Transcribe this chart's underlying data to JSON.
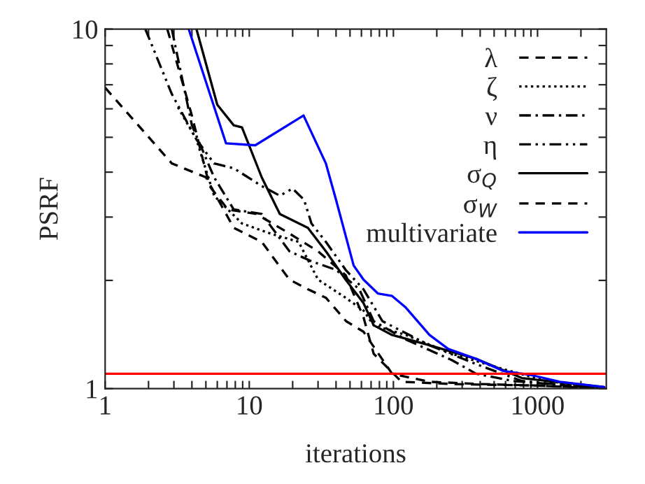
{
  "chart_data": {
    "type": "line",
    "xlabel": "iterations",
    "ylabel": "PSRF",
    "log": "xy",
    "grid": false,
    "legend": "top right",
    "xlim": [
      1,
      3000
    ],
    "ylim": [
      1,
      10
    ],
    "xticks": [
      1,
      {
        "value": 2,
        "label": null
      },
      {
        "value": 3,
        "label": null
      },
      {
        "value": 4,
        "label": null
      },
      {
        "value": 5,
        "label": null
      },
      {
        "value": 6,
        "label": null
      },
      {
        "value": 7,
        "label": null
      },
      {
        "value": 8,
        "label": null
      },
      {
        "value": 9,
        "label": null
      },
      10,
      {
        "value": 20,
        "label": null
      },
      {
        "value": 30,
        "label": null
      },
      {
        "value": 40,
        "label": null
      },
      {
        "value": 50,
        "label": null
      },
      {
        "value": 60,
        "label": null
      },
      {
        "value": 70,
        "label": null
      },
      {
        "value": 80,
        "label": null
      },
      {
        "value": 90,
        "label": null
      },
      100,
      {
        "value": 200,
        "label": null
      },
      {
        "value": 300,
        "label": null
      },
      {
        "value": 400,
        "label": null
      },
      {
        "value": 500,
        "label": null
      },
      {
        "value": 600,
        "label": null
      },
      {
        "value": 700,
        "label": null
      },
      {
        "value": 800,
        "label": null
      },
      {
        "value": 900,
        "label": null
      },
      1000,
      {
        "value": 2000,
        "label": null
      }
    ],
    "yticks": [
      1,
      {
        "value": 2,
        "label": null
      },
      {
        "value": 3,
        "label": null
      },
      {
        "value": 4,
        "label": null
      },
      {
        "value": 5,
        "label": null
      },
      {
        "value": 6,
        "label": null
      },
      {
        "value": 7,
        "label": null
      },
      {
        "value": 8,
        "label": null
      },
      {
        "value": 9,
        "label": null
      },
      10
    ],
    "ref_lines": [
      {
        "axis": "y",
        "value": 1.1,
        "color": "#ff0000",
        "line_style": "solid"
      }
    ],
    "series": [
      {
        "name": "λ",
        "color": "#000000",
        "line_style": "dashed",
        "x": [
          1,
          2.9,
          5,
          7.8,
          12.2,
          19,
          25.5,
          34,
          47,
          62,
          98,
          178,
          400,
          1000,
          3000
        ],
        "values": [
          6.87,
          4.23,
          3.87,
          2.8,
          2.56,
          2.01,
          1.89,
          1.79,
          1.54,
          1.44,
          1.1,
          1.045,
          1.03,
          1.02,
          1.0
        ]
      },
      {
        "name": "ζ",
        "color": "#000000",
        "line_style": "dotted",
        "x": [
          3.2,
          4.3,
          5.7,
          8.9,
          14,
          22,
          30,
          46.6,
          62,
          73,
          122,
          255,
          550,
          1150,
          3000
        ],
        "values": [
          6.06,
          4.93,
          3.44,
          2.88,
          2.7,
          2.56,
          2.01,
          1.79,
          1.65,
          1.5,
          1.41,
          1.25,
          1.14,
          1.05,
          1.0
        ]
      },
      {
        "name": "ν",
        "color": "#000000",
        "line_style": "dashdot",
        "x": [
          2.9,
          4,
          5.7,
          7.8,
          12.2,
          19,
          27,
          40,
          58,
          73,
          122,
          255,
          375,
          680,
          3000
        ],
        "values": [
          10,
          5.4,
          3.87,
          3.15,
          3.06,
          2.41,
          2.26,
          2.14,
          1.89,
          1.54,
          1.37,
          1.2,
          1.1,
          1.05,
          1.0
        ]
      },
      {
        "name": "η",
        "color": "#000000",
        "line_style": "dashdotdot",
        "x": [
          1.9,
          2.9,
          4.3,
          5.7,
          7.8,
          12.2,
          16.3,
          20,
          24,
          27,
          34,
          46.6,
          62,
          84,
          178,
          375,
          780,
          3000
        ],
        "values": [
          10,
          6.6,
          4.93,
          4.23,
          4.1,
          3.66,
          3.44,
          3.6,
          3.35,
          2.88,
          2.56,
          2.14,
          1.89,
          1.54,
          1.32,
          1.17,
          1.05,
          1.0
        ]
      },
      {
        "name": "σ$_{Q}$",
        "color": "#000000",
        "line_style": "solid",
        "x": [
          4.3,
          6,
          7.8,
          8.9,
          12.2,
          16.3,
          25.5,
          34,
          46.6,
          62,
          73,
          98,
          178,
          375,
          780,
          2900
        ],
        "values": [
          10,
          6.16,
          5.4,
          5.33,
          3.87,
          3.06,
          2.8,
          2.41,
          2.01,
          1.73,
          1.5,
          1.41,
          1.32,
          1.21,
          1.07,
          1.01
        ]
      },
      {
        "name": "σ$_{W}$",
        "color": "#000000",
        "line_style": "dashed",
        "x": [
          2.7,
          4,
          5.3,
          7.1,
          11.2,
          19,
          30,
          46.6,
          62,
          73,
          114,
          255,
          1000,
          3000
        ],
        "values": [
          10,
          5.74,
          3.66,
          3.15,
          3.06,
          2.7,
          2.41,
          2.07,
          1.58,
          1.25,
          1.045,
          1.03,
          1.02,
          1.0
        ]
      },
      {
        "name": "multivariate",
        "color": "#0000ff",
        "line_style": "solid",
        "x": [
          3.8,
          6.9,
          11,
          23.8,
          34,
          40,
          53,
          62,
          78,
          98,
          122,
          178,
          240,
          375,
          580,
          910,
          1430,
          2900
        ],
        "values": [
          10,
          4.81,
          4.75,
          5.75,
          4.23,
          3.35,
          2.2,
          2.01,
          1.84,
          1.81,
          1.68,
          1.41,
          1.29,
          1.21,
          1.12,
          1.09,
          1.045,
          1.01
        ]
      }
    ]
  }
}
